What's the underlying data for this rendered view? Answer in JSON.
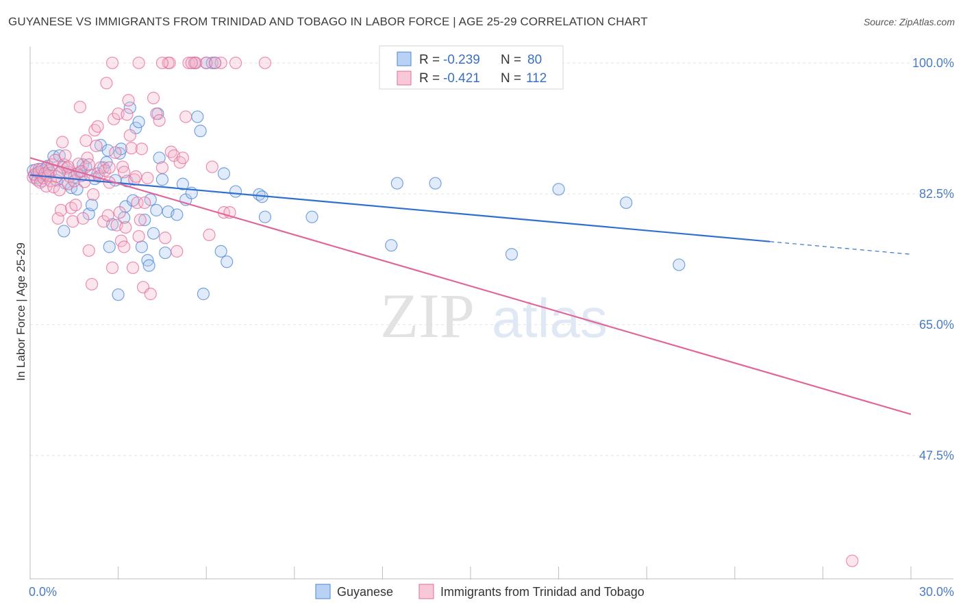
{
  "title": "GUYANESE VS IMMIGRANTS FROM TRINIDAD AND TOBAGO IN LABOR FORCE | AGE 25-29 CORRELATION CHART",
  "source": "Source: ZipAtlas.com",
  "watermark": {
    "zip": "ZIP",
    "atlas": "atlas"
  },
  "colors": {
    "blue": "#4a86d6",
    "blue_fill": "#a9c6ef",
    "blue_line": "#2f6fcf",
    "pink": "#e46a99",
    "pink_fill": "#f4b6cb",
    "pink_line": "#e0669a",
    "axis_text": "#4a7cc4"
  },
  "chart_data": {
    "type": "scatter",
    "title": "GUYANESE VS IMMIGRANTS FROM TRINIDAD AND TOBAGO IN LABOR FORCE | AGE 25-29 CORRELATION CHART",
    "xlabel": "",
    "ylabel": "In Labor Force | Age 25-29",
    "xlim": [
      0,
      30
    ],
    "ylim": [
      31,
      102
    ],
    "x_tick_labels": [
      {
        "value": 0,
        "label": "0.0%"
      },
      {
        "value": 30,
        "label": "30.0%"
      }
    ],
    "y_tick_labels": [
      {
        "value": 100,
        "label": "100.0%"
      },
      {
        "value": 82.5,
        "label": "82.5%"
      },
      {
        "value": 65,
        "label": "65.0%"
      },
      {
        "value": 47.5,
        "label": "47.5%"
      }
    ],
    "legend": [
      {
        "series": "Guyanese",
        "r_label": "R =",
        "r_value": "-0.239",
        "n_label": "N =",
        "n_value": "80"
      },
      {
        "series": "Immigrants from Trinidad and Tobago",
        "r_label": "R =",
        "r_value": "-0.421",
        "n_label": "N =",
        "n_value": "112"
      }
    ],
    "series": [
      {
        "name": "Guyanese",
        "color": "#4a86d6",
        "trend": {
          "x0": 0,
          "y0": 85.0,
          "x1": 25.2,
          "y1": 76.1,
          "dash_to_x": 30,
          "dash_to_y": 74.4
        },
        "points": [
          [
            0.1,
            85.6
          ],
          [
            0.15,
            85.0
          ],
          [
            0.2,
            84.6
          ],
          [
            0.25,
            85.3
          ],
          [
            0.3,
            85.8
          ],
          [
            0.35,
            85.1
          ],
          [
            0.4,
            84.2
          ],
          [
            0.45,
            85.6
          ],
          [
            0.5,
            85.0
          ],
          [
            0.55,
            86.0
          ],
          [
            0.6,
            86.2
          ],
          [
            0.7,
            85.3
          ],
          [
            0.8,
            87.5
          ],
          [
            0.9,
            84.3
          ],
          [
            1.0,
            87.6
          ],
          [
            1.1,
            86.0
          ],
          [
            1.15,
            77.5
          ],
          [
            1.2,
            83.9
          ],
          [
            1.3,
            85.4
          ],
          [
            1.4,
            83.3
          ],
          [
            1.5,
            84.7
          ],
          [
            1.6,
            83.1
          ],
          [
            1.7,
            85.4
          ],
          [
            1.75,
            84.9
          ],
          [
            1.8,
            86.4
          ],
          [
            1.9,
            86.1
          ],
          [
            2.0,
            79.8
          ],
          [
            2.1,
            81.0
          ],
          [
            2.2,
            84.5
          ],
          [
            2.3,
            85.2
          ],
          [
            2.4,
            89.0
          ],
          [
            2.5,
            86.0
          ],
          [
            2.6,
            86.7
          ],
          [
            2.65,
            88.3
          ],
          [
            2.7,
            75.4
          ],
          [
            2.8,
            78.4
          ],
          [
            2.9,
            84.3
          ],
          [
            3.0,
            69.0
          ],
          [
            3.05,
            87.9
          ],
          [
            3.1,
            88.5
          ],
          [
            3.2,
            79.3
          ],
          [
            3.25,
            80.8
          ],
          [
            3.3,
            84.2
          ],
          [
            3.4,
            94.0
          ],
          [
            3.5,
            81.6
          ],
          [
            3.6,
            91.3
          ],
          [
            3.7,
            92.1
          ],
          [
            3.8,
            75.4
          ],
          [
            3.9,
            79.0
          ],
          [
            4.0,
            73.6
          ],
          [
            4.05,
            72.9
          ],
          [
            4.1,
            81.7
          ],
          [
            4.2,
            77.2
          ],
          [
            4.3,
            80.3
          ],
          [
            4.35,
            93.2
          ],
          [
            4.4,
            87.3
          ],
          [
            4.5,
            84.4
          ],
          [
            4.6,
            74.6
          ],
          [
            4.7,
            80.1
          ],
          [
            5.0,
            79.7
          ],
          [
            5.2,
            83.8
          ],
          [
            5.3,
            81.7
          ],
          [
            5.5,
            82.6
          ],
          [
            5.6,
            100
          ],
          [
            5.7,
            92.8
          ],
          [
            5.8,
            90.9
          ],
          [
            5.9,
            69.1
          ],
          [
            6.0,
            100
          ],
          [
            6.2,
            100
          ],
          [
            6.3,
            100
          ],
          [
            6.5,
            74.8
          ],
          [
            6.6,
            85.2
          ],
          [
            6.7,
            73.4
          ],
          [
            7.0,
            82.8
          ],
          [
            7.8,
            82.4
          ],
          [
            7.9,
            82.1
          ],
          [
            8.0,
            79.4
          ],
          [
            9.6,
            79.4
          ],
          [
            12.3,
            75.6
          ],
          [
            12.5,
            83.9
          ],
          [
            13.8,
            83.9
          ],
          [
            16.4,
            74.4
          ],
          [
            18.0,
            83.1
          ],
          [
            20.3,
            81.3
          ],
          [
            22.1,
            73.0
          ]
        ]
      },
      {
        "name": "Immigrants from Trinidad and Tobago",
        "color": "#e46a99",
        "trend": {
          "x0": 0,
          "y0": 87.3,
          "x1": 30,
          "y1": 53.0
        },
        "points": [
          [
            0.1,
            84.7
          ],
          [
            0.15,
            85.1
          ],
          [
            0.2,
            85.7
          ],
          [
            0.25,
            84.3
          ],
          [
            0.3,
            85.4
          ],
          [
            0.35,
            84.0
          ],
          [
            0.4,
            85.8
          ],
          [
            0.45,
            84.6
          ],
          [
            0.5,
            85.2
          ],
          [
            0.55,
            83.5
          ],
          [
            0.6,
            84.9
          ],
          [
            0.65,
            85.6
          ],
          [
            0.7,
            84.2
          ],
          [
            0.75,
            86.4
          ],
          [
            0.8,
            83.4
          ],
          [
            0.85,
            87.0
          ],
          [
            0.9,
            84.8
          ],
          [
            0.95,
            79.2
          ],
          [
            1.0,
            83.0
          ],
          [
            1.05,
            80.3
          ],
          [
            1.1,
            89.4
          ],
          [
            1.15,
            86.4
          ],
          [
            1.2,
            87.6
          ],
          [
            1.25,
            85.9
          ],
          [
            1.3,
            83.8
          ],
          [
            1.35,
            84.8
          ],
          [
            1.4,
            80.6
          ],
          [
            1.45,
            78.8
          ],
          [
            1.5,
            84.2
          ],
          [
            1.55,
            81.0
          ],
          [
            1.6,
            85.2
          ],
          [
            1.65,
            86.5
          ],
          [
            1.7,
            94.1
          ],
          [
            1.75,
            85.5
          ],
          [
            1.8,
            79.2
          ],
          [
            1.85,
            84.1
          ],
          [
            1.9,
            89.6
          ],
          [
            1.95,
            87.3
          ],
          [
            2.0,
            74.9
          ],
          [
            2.05,
            85.0
          ],
          [
            2.1,
            70.4
          ],
          [
            2.15,
            82.4
          ],
          [
            2.2,
            91.0
          ],
          [
            2.25,
            88.9
          ],
          [
            2.3,
            91.5
          ],
          [
            2.35,
            84.8
          ],
          [
            2.4,
            86.0
          ],
          [
            2.5,
            78.8
          ],
          [
            2.55,
            85.6
          ],
          [
            2.6,
            97.3
          ],
          [
            2.65,
            79.6
          ],
          [
            2.7,
            84.0
          ],
          [
            2.8,
            72.6
          ],
          [
            2.85,
            92.5
          ],
          [
            2.9,
            88.0
          ],
          [
            2.95,
            78.3
          ],
          [
            3.0,
            93.2
          ],
          [
            3.05,
            80.0
          ],
          [
            3.1,
            76.2
          ],
          [
            3.15,
            86.1
          ],
          [
            3.2,
            75.4
          ],
          [
            3.25,
            78.0
          ],
          [
            3.3,
            93.1
          ],
          [
            3.35,
            95.0
          ],
          [
            3.4,
            90.3
          ],
          [
            3.45,
            88.6
          ],
          [
            3.5,
            72.6
          ],
          [
            3.55,
            84.4
          ],
          [
            3.6,
            84.8
          ],
          [
            3.65,
            81.3
          ],
          [
            3.7,
            76.8
          ],
          [
            3.75,
            79.0
          ],
          [
            3.8,
            88.5
          ],
          [
            3.85,
            70.0
          ],
          [
            3.9,
            81.3
          ],
          [
            4.0,
            84.6
          ],
          [
            4.1,
            69.1
          ],
          [
            4.2,
            95.3
          ],
          [
            4.3,
            93.2
          ],
          [
            4.4,
            92.3
          ],
          [
            4.5,
            86.0
          ],
          [
            4.6,
            76.6
          ],
          [
            4.7,
            100
          ],
          [
            4.75,
            100
          ],
          [
            4.8,
            88.1
          ],
          [
            4.9,
            87.6
          ],
          [
            5.0,
            74.8
          ],
          [
            5.1,
            86.7
          ],
          [
            5.2,
            87.3
          ],
          [
            5.3,
            92.8
          ],
          [
            5.4,
            100
          ],
          [
            5.6,
            100
          ],
          [
            5.65,
            100
          ],
          [
            6.0,
            100
          ],
          [
            6.1,
            77.0
          ],
          [
            6.2,
            86.1
          ],
          [
            6.5,
            100
          ],
          [
            6.6,
            80.0
          ],
          [
            7.0,
            100
          ],
          [
            8.0,
            100
          ],
          [
            3.7,
            100
          ],
          [
            2.8,
            100
          ],
          [
            4.5,
            100
          ],
          [
            5.5,
            100
          ],
          [
            6.3,
            100
          ],
          [
            6.8,
            80.0
          ],
          [
            2.0,
            86.4
          ],
          [
            1.0,
            85.3
          ],
          [
            1.3,
            86.1
          ],
          [
            28.0,
            33.4
          ],
          [
            3.2,
            85.4
          ],
          [
            2.7,
            86.0
          ]
        ]
      }
    ]
  }
}
